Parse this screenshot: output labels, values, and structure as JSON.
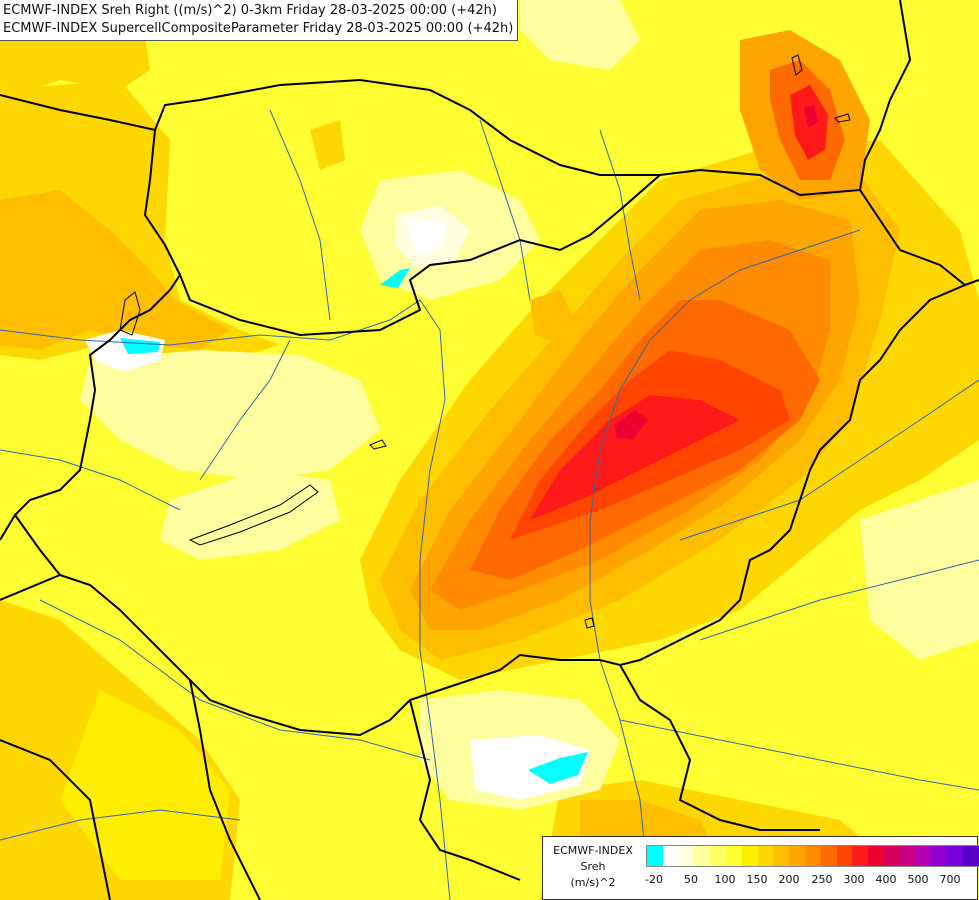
{
  "header": {
    "line1": "ECMWF-INDEX Sreh Right ((m/s)^2) 0-3km Friday 28-03-2025 00:00 (+42h)",
    "line2": "ECMWF-INDEX SupercellCompositeParameter Friday 28-03-2025 00:00 (+42h)"
  },
  "legend": {
    "title_line1": "ECMWF-INDEX",
    "title_line2": "Sreh",
    "title_line3": "(m/s)^2",
    "colors": [
      "#00ffff",
      "#ffffff",
      "#ffffdd",
      "#ffffa0",
      "#ffff66",
      "#ffff33",
      "#ffee00",
      "#ffd700",
      "#ffbf00",
      "#ffa500",
      "#ff8c00",
      "#ff6a00",
      "#ff4500",
      "#ff1a1a",
      "#ee0033",
      "#d6005a",
      "#c70080",
      "#b000b0",
      "#9000d0",
      "#7a00e0",
      "#5a00c8",
      "#1a00a0"
    ],
    "ticks": [
      "-20",
      "50",
      "100",
      "150",
      "200",
      "250",
      "300",
      "400",
      "500",
      "700"
    ]
  },
  "map": {
    "region": "Hungary and surroundings",
    "fill_colors": {
      "background": "#ffff33",
      "light": "#ffffa0",
      "pale": "#ffffdd",
      "white": "#ffffff",
      "cyan": "#00ffff",
      "yellow_deep": "#ffee00",
      "gold": "#ffd700",
      "amber": "#ffbf00",
      "orange": "#ffa500",
      "dark_orange": "#ff8c00",
      "red_orange": "#ff6a00",
      "orange_red": "#ff4500",
      "red": "#ff1a1a",
      "crimson": "#ee0033"
    },
    "border_color": "#000000",
    "river_color": "#3366aa"
  }
}
